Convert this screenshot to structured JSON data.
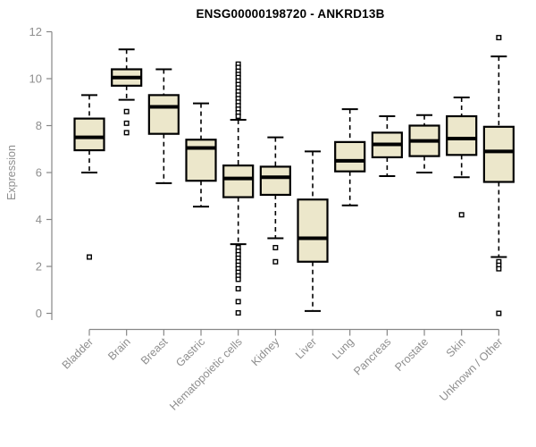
{
  "chart_data": {
    "type": "boxplot",
    "title": "ENSG00000198720 - ANKRD13B",
    "ylabel": "Expression",
    "xlabel": "",
    "ylim": [
      0,
      12
    ],
    "yticks": [
      0,
      2,
      4,
      6,
      8,
      10,
      12
    ],
    "grid": false,
    "legend": "none",
    "categories": [
      "Bladder",
      "Brain",
      "Breast",
      "Gastric",
      "Hematopoietic cells",
      "Kidney",
      "Liver",
      "Lung",
      "Pancreas",
      "Prostate",
      "Skin",
      "Unknown / Other"
    ],
    "series": [
      {
        "name": "Bladder",
        "low": 6.0,
        "q1": 6.95,
        "median": 7.5,
        "q3": 8.3,
        "high": 9.3,
        "outliers": [
          2.4
        ]
      },
      {
        "name": "Brain",
        "low": 9.1,
        "q1": 9.7,
        "median": 10.05,
        "q3": 10.4,
        "high": 11.25,
        "outliers": [
          8.6,
          8.1,
          7.7
        ]
      },
      {
        "name": "Breast",
        "low": 5.55,
        "q1": 7.65,
        "median": 8.8,
        "q3": 9.3,
        "high": 10.4,
        "outliers": []
      },
      {
        "name": "Gastric",
        "low": 4.55,
        "q1": 5.65,
        "median": 7.05,
        "q3": 7.4,
        "high": 8.95,
        "outliers": []
      },
      {
        "name": "Hematopoietic cells",
        "low": 2.95,
        "q1": 4.95,
        "median": 5.75,
        "q3": 6.3,
        "high": 8.25,
        "outliers": [
          10.62,
          10.48,
          10.32,
          10.18,
          10.05,
          9.9,
          9.75,
          9.6,
          9.45,
          9.3,
          9.15,
          9.0,
          8.85,
          8.7,
          8.55,
          8.4,
          2.8,
          2.65,
          2.5,
          2.35,
          2.2,
          2.05,
          1.9,
          1.75,
          1.6,
          1.45,
          1.05,
          0.5,
          0.02
        ]
      },
      {
        "name": "Kidney",
        "low": 3.2,
        "q1": 5.05,
        "median": 5.8,
        "q3": 6.25,
        "high": 7.5,
        "outliers": [
          2.8,
          2.2
        ]
      },
      {
        "name": "Liver",
        "low": 0.1,
        "q1": 2.2,
        "median": 3.2,
        "q3": 4.85,
        "high": 6.9,
        "outliers": []
      },
      {
        "name": "Lung",
        "low": 4.6,
        "q1": 6.05,
        "median": 6.5,
        "q3": 7.3,
        "high": 8.7,
        "outliers": []
      },
      {
        "name": "Pancreas",
        "low": 5.85,
        "q1": 6.65,
        "median": 7.2,
        "q3": 7.7,
        "high": 8.4,
        "outliers": []
      },
      {
        "name": "Prostate",
        "low": 6.0,
        "q1": 6.7,
        "median": 7.35,
        "q3": 8.0,
        "high": 8.45,
        "outliers": []
      },
      {
        "name": "Skin",
        "low": 5.8,
        "q1": 6.75,
        "median": 7.45,
        "q3": 8.4,
        "high": 9.2,
        "outliers": [
          4.2
        ]
      },
      {
        "name": "Unknown / Other",
        "low": 2.4,
        "q1": 5.6,
        "median": 6.9,
        "q3": 7.95,
        "high": 10.95,
        "outliers": [
          11.75,
          2.2,
          2.05,
          1.9,
          0.0
        ]
      }
    ],
    "colors": {
      "background": "#ffffff",
      "axis": "#878787",
      "tick_label": "#8e8e8e",
      "box_fill": "#ece7cb",
      "box_stroke": "#000000",
      "median": "#000000",
      "whisker": "#000000",
      "outlier_fill": "#ffffff",
      "title": "#000000"
    }
  }
}
